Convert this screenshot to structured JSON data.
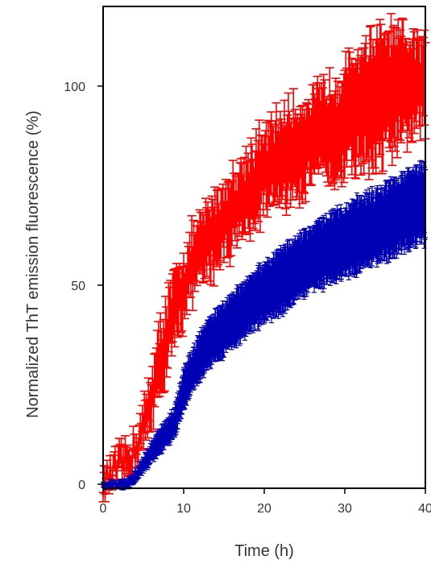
{
  "chart_data": {
    "type": "line",
    "title": "",
    "xlabel": "Time (h)",
    "ylabel": "Normalized ThT emission fluorescence (%)",
    "xlim": [
      0,
      40
    ],
    "ylim": [
      -1,
      120
    ],
    "x_ticks": [
      0,
      10,
      20,
      30,
      40
    ],
    "y_ticks": [
      0,
      50,
      100
    ],
    "grid": false,
    "legend": "none",
    "series": [
      {
        "color": "#ff0000",
        "points": [
          [
            0,
            0
          ],
          [
            1,
            2
          ],
          [
            2,
            4
          ],
          [
            3,
            6
          ],
          [
            4,
            9
          ],
          [
            5,
            14
          ],
          [
            6,
            22
          ],
          [
            7,
            30
          ],
          [
            8,
            38
          ],
          [
            9,
            44
          ],
          [
            10,
            50
          ],
          [
            11,
            55
          ],
          [
            12,
            58
          ],
          [
            13,
            61
          ],
          [
            14,
            64
          ],
          [
            15,
            66
          ],
          [
            16,
            69
          ],
          [
            17,
            71
          ],
          [
            18,
            74
          ],
          [
            19,
            76
          ],
          [
            20,
            78
          ],
          [
            21,
            80
          ],
          [
            22,
            82
          ],
          [
            23,
            83
          ],
          [
            24,
            84
          ],
          [
            25,
            85
          ],
          [
            26,
            86
          ],
          [
            27,
            88
          ],
          [
            28,
            89
          ],
          [
            29,
            90
          ],
          [
            30,
            92
          ],
          [
            31,
            94
          ],
          [
            32,
            95
          ],
          [
            33,
            96
          ],
          [
            34,
            97
          ],
          [
            35,
            98
          ],
          [
            36,
            99
          ],
          [
            37,
            99
          ],
          [
            38,
            100
          ],
          [
            39,
            100
          ],
          [
            40,
            100
          ]
        ],
        "error": [
          1,
          2,
          3,
          3,
          3,
          4,
          6,
          8,
          8,
          8,
          7,
          7,
          7,
          8,
          8,
          8,
          8,
          8,
          9,
          9,
          9,
          9,
          10,
          10,
          10,
          10,
          10,
          10,
          11,
          11,
          11,
          12,
          13,
          14,
          14,
          14,
          13,
          12,
          11,
          10,
          10
        ]
      },
      {
        "color": "#0000b4",
        "points": [
          [
            0,
            0
          ],
          [
            1,
            0
          ],
          [
            2,
            0
          ],
          [
            3,
            0
          ],
          [
            4,
            2
          ],
          [
            5,
            5
          ],
          [
            6,
            8
          ],
          [
            7,
            11
          ],
          [
            8,
            13
          ],
          [
            9,
            16
          ],
          [
            10,
            24
          ],
          [
            11,
            28
          ],
          [
            12,
            32
          ],
          [
            13,
            35
          ],
          [
            14,
            37
          ],
          [
            15,
            39
          ],
          [
            16,
            41
          ],
          [
            17,
            43
          ],
          [
            18,
            45
          ],
          [
            19,
            46.5
          ],
          [
            20,
            48
          ],
          [
            21,
            49.5
          ],
          [
            22,
            51
          ],
          [
            23,
            52.5
          ],
          [
            24,
            54
          ],
          [
            25,
            55.5
          ],
          [
            26,
            57
          ],
          [
            27,
            58
          ],
          [
            28,
            59
          ],
          [
            29,
            60
          ],
          [
            30,
            61
          ],
          [
            31,
            62
          ],
          [
            32,
            63
          ],
          [
            33,
            64
          ],
          [
            34,
            65
          ],
          [
            35,
            66
          ],
          [
            36,
            67
          ],
          [
            37,
            68
          ],
          [
            38,
            69
          ],
          [
            39,
            70
          ],
          [
            40,
            71
          ]
        ],
        "error": [
          0.5,
          0.5,
          0.5,
          0.8,
          1,
          1.5,
          2,
          2.5,
          3,
          3.5,
          4,
          4.5,
          5,
          5,
          5.5,
          5.5,
          6,
          6,
          6,
          6.5,
          6.5,
          6.5,
          7,
          7,
          7,
          7,
          7,
          7.5,
          7.5,
          7.5,
          7.5,
          8,
          8,
          8,
          8,
          8,
          8.5,
          8.5,
          8.5,
          8.5,
          9
        ]
      }
    ]
  }
}
